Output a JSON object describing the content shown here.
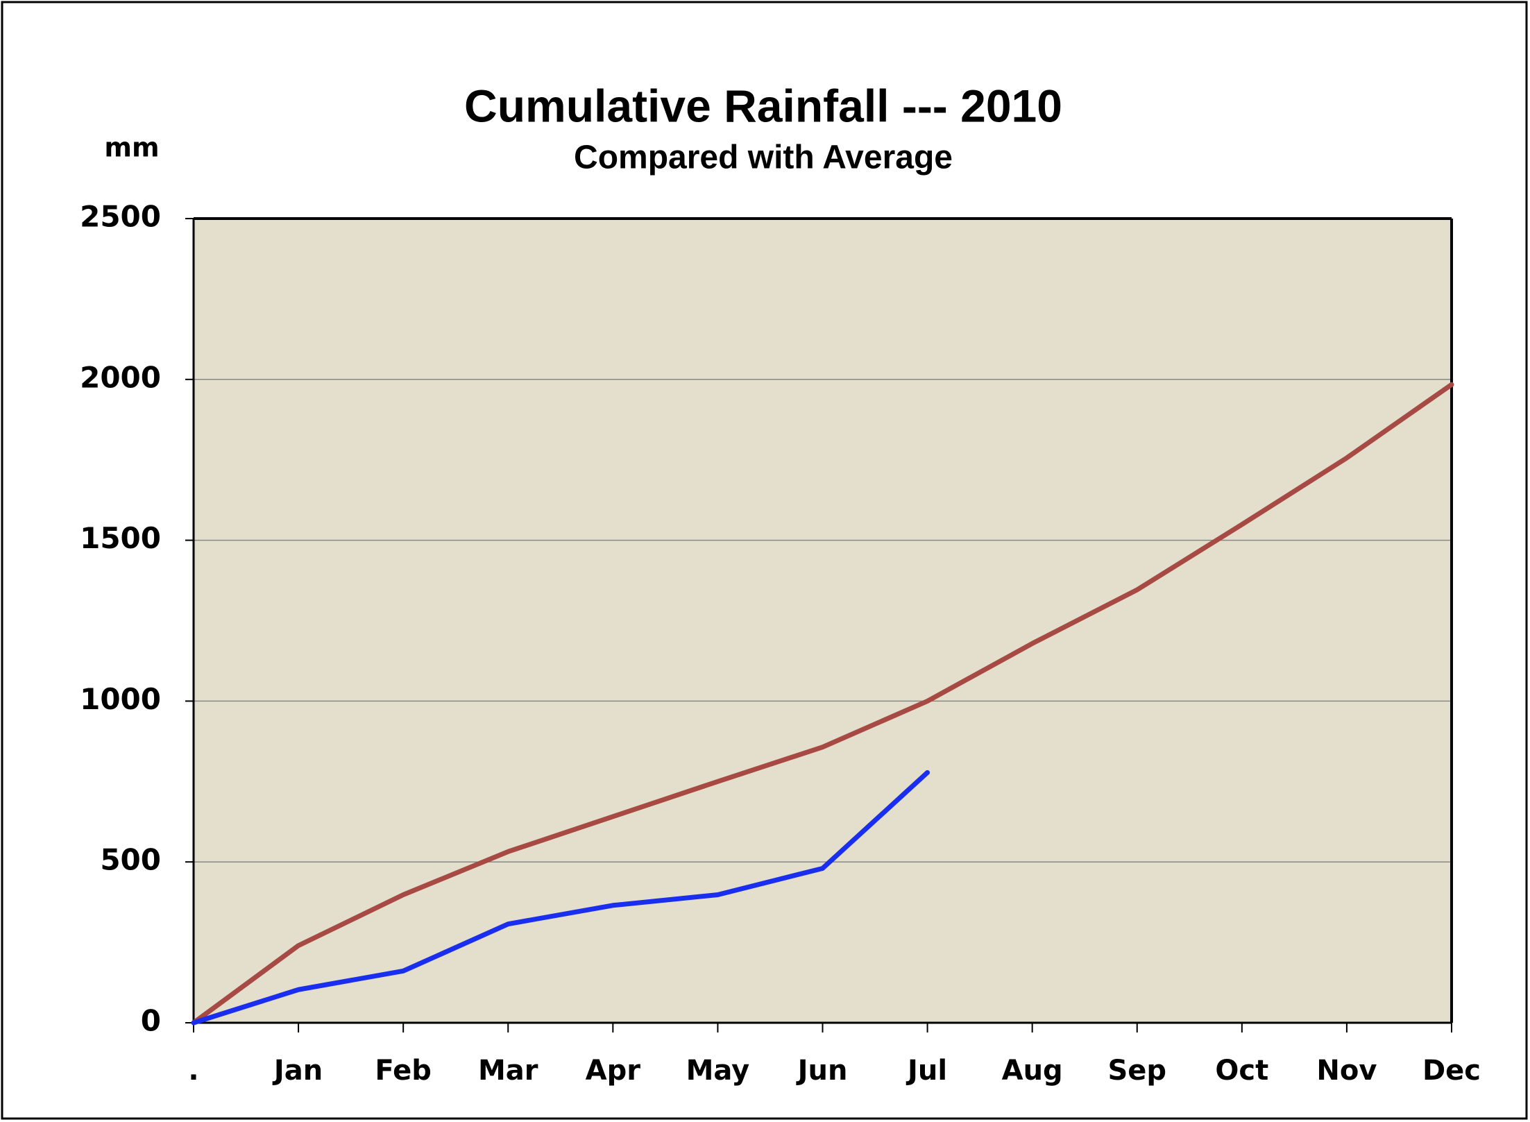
{
  "chart_data": {
    "type": "line",
    "title": "Cumulative Rainfall --- 2010",
    "subtitle": "Compared with Average",
    "y_label": "mm",
    "categories": [
      ".",
      "Jan",
      "Feb",
      "Mar",
      "Apr",
      "May",
      "Jun",
      "Jul",
      "Aug",
      "Sep",
      "Oct",
      "Nov",
      "Dec"
    ],
    "series": [
      {
        "color": "#a84a44",
        "values": [
          0,
          240,
          398,
          532,
          641,
          750,
          857,
          1000,
          1179,
          1346,
          1549,
          1756,
          1984
        ]
      },
      {
        "color": "#1a2ef0",
        "values": [
          0,
          103,
          161,
          307,
          365,
          398,
          480,
          778,
          null,
          null,
          null,
          null,
          null
        ]
      }
    ],
    "ylim": [
      0,
      2500
    ],
    "yticks": [
      0,
      500,
      1000,
      1500,
      2000,
      2500
    ],
    "grid": true,
    "plot_background": "#e3dfcc"
  }
}
